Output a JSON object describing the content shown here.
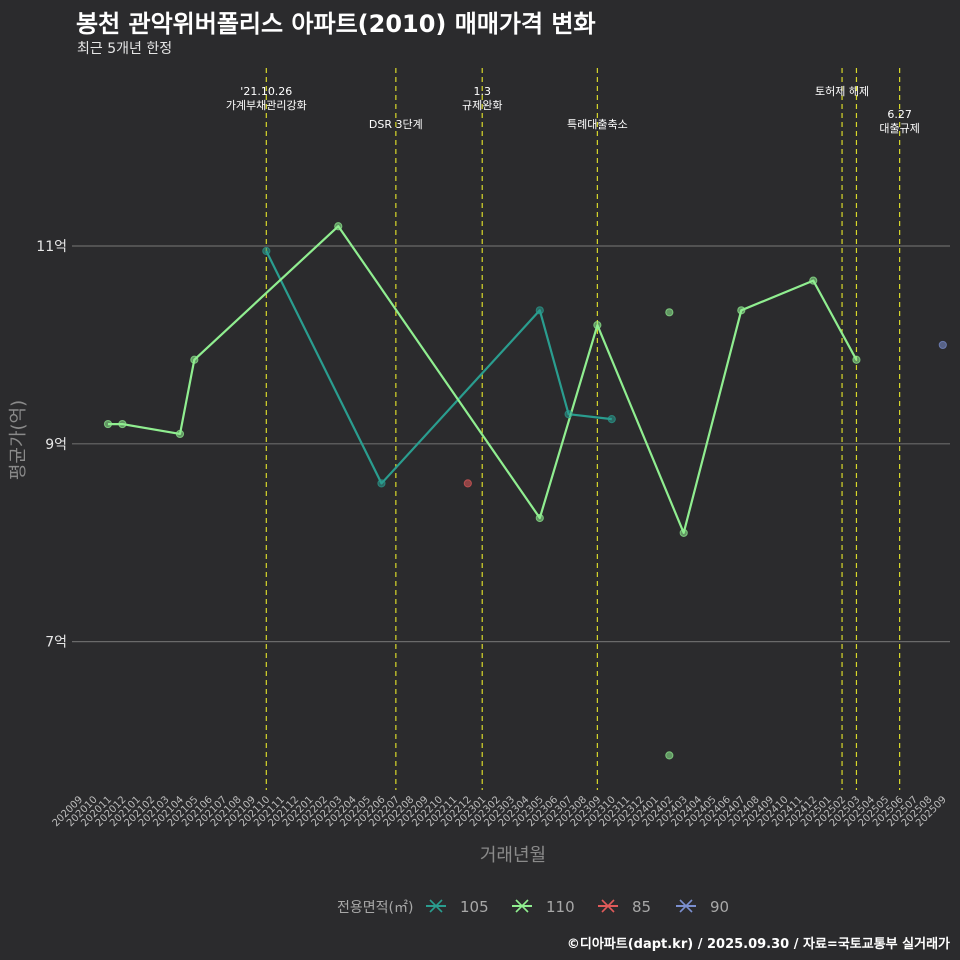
{
  "header": {
    "title": "봉천 관악위버폴리스 아파트(2010) 매매가격 변화",
    "subtitle": "최근 5개년 한정"
  },
  "caption": "©디아파트(dapt.kr) / 2025.09.30 / 자료=국토교통부 실거래가",
  "chart_data": {
    "type": "line",
    "title": "봉천 관악위버폴리스 아파트(2010) 매매가격 변화",
    "xlabel": "거래년월",
    "ylabel": "평균가(억)",
    "categories": [
      "202009",
      "202010",
      "202011",
      "202012",
      "202101",
      "202102",
      "202103",
      "202104",
      "202105",
      "202106",
      "202107",
      "202108",
      "202109",
      "202110",
      "202111",
      "202112",
      "202201",
      "202202",
      "202203",
      "202204",
      "202205",
      "202206",
      "202207",
      "202208",
      "202209",
      "202210",
      "202211",
      "202212",
      "202301",
      "202302",
      "202303",
      "202304",
      "202305",
      "202306",
      "202307",
      "202308",
      "202309",
      "202310",
      "202311",
      "202312",
      "202401",
      "202402",
      "202403",
      "202404",
      "202405",
      "202406",
      "202407",
      "202408",
      "202409",
      "202410",
      "202411",
      "202412",
      "202501",
      "202502",
      "202503",
      "202504",
      "202505",
      "202506",
      "202507",
      "202508",
      "202509"
    ],
    "y_ticks": [
      {
        "value": 7,
        "label": "7억"
      },
      {
        "value": 9,
        "label": "9억"
      },
      {
        "value": 11,
        "label": "11억"
      }
    ],
    "ylim": [
      5.5,
      12.8
    ],
    "grid": true,
    "background": "#2b2b2d",
    "series": [
      {
        "name": "105",
        "color": "#2a9d8f",
        "points": [
          [
            "202110",
            10.95
          ],
          [
            "202206",
            8.6
          ],
          [
            "202305",
            10.35
          ],
          [
            "202307",
            9.3
          ],
          [
            "202310",
            9.25
          ]
        ]
      },
      {
        "name": "110",
        "color": "#90ee90",
        "points": [
          [
            "202011",
            9.2
          ],
          [
            "202012",
            9.2
          ],
          [
            "202104",
            9.1
          ],
          [
            "202105",
            9.85
          ],
          [
            "202203",
            11.2
          ],
          [
            "202305",
            8.25
          ],
          [
            "202309",
            10.2
          ],
          [
            "202403",
            8.1
          ],
          [
            "202407",
            10.35
          ],
          [
            "202412",
            10.65
          ],
          [
            "202503",
            9.85
          ]
        ]
      },
      {
        "name": "85",
        "color": "#e05a5a",
        "points": [
          [
            "202212",
            8.6
          ]
        ]
      },
      {
        "name": "90",
        "color": "#7b8fcf",
        "points": [
          [
            "202509",
            10.0
          ]
        ]
      }
    ],
    "isolated_points": [
      {
        "series": "110",
        "x": "202402",
        "y": 10.33
      },
      {
        "series": "110",
        "x": "202402",
        "y": 5.85
      }
    ],
    "events": [
      {
        "x": "202110",
        "label": [
          "'21.10.26",
          "가계부채관리강화"
        ],
        "row": 0
      },
      {
        "x": "202207",
        "label": [
          "DSR 3단계"
        ],
        "row": 1
      },
      {
        "x": "202301",
        "label": [
          "1.3",
          "규제완화"
        ],
        "row": 0
      },
      {
        "x": "202309",
        "label": [
          "특례대출축소"
        ],
        "row": 1
      },
      {
        "x": "202502",
        "label": [
          "토허제 해제"
        ],
        "row": 0
      },
      {
        "x": "202503",
        "label": [],
        "row": 0
      },
      {
        "x": "202506",
        "label": [
          "6.27",
          "대출규제"
        ],
        "row": 2
      }
    ],
    "legend": {
      "title": "전용면적(㎡)",
      "position": "bottom",
      "items": [
        {
          "label": "105",
          "color": "#2a9d8f"
        },
        {
          "label": "110",
          "color": "#90ee90"
        },
        {
          "label": "85",
          "color": "#e05a5a"
        },
        {
          "label": "90",
          "color": "#7b8fcf"
        }
      ]
    }
  }
}
